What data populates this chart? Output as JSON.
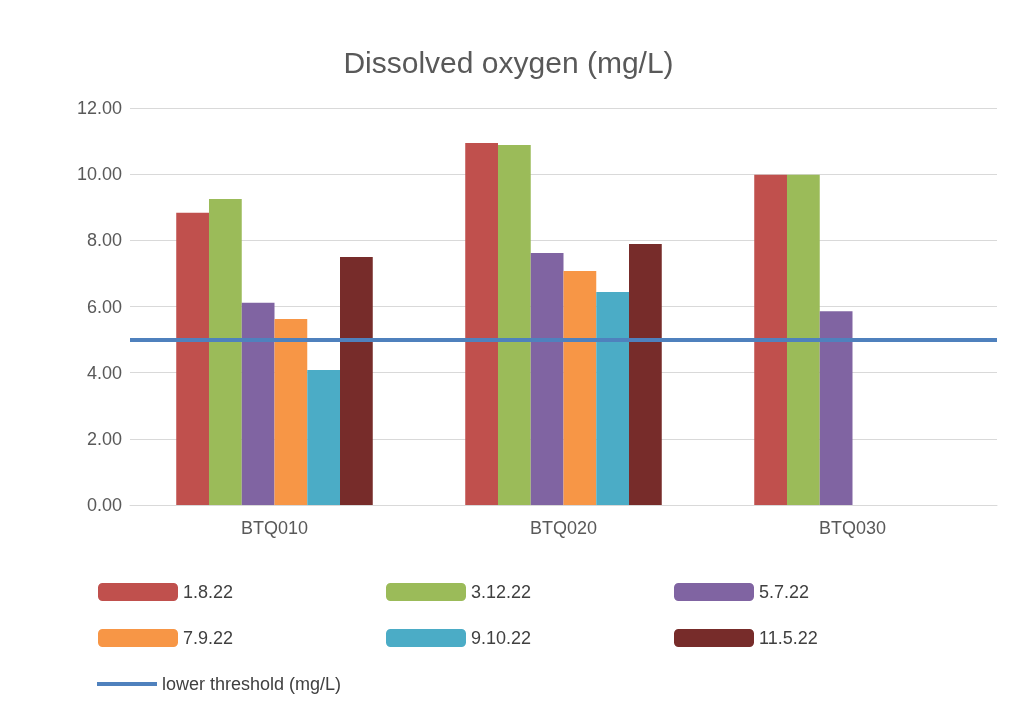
{
  "chart_data": {
    "type": "bar",
    "title": "Dissolved oxygen (mg/L)",
    "categories": [
      "BTQ010",
      "BTQ020",
      "BTQ030"
    ],
    "series": [
      {
        "name": "1.8.22",
        "color": "#c0504d",
        "values": [
          8.83,
          10.94,
          9.98
        ]
      },
      {
        "name": "3.12.22",
        "color": "#9bbb59",
        "values": [
          9.25,
          10.88,
          9.98
        ]
      },
      {
        "name": "5.7.22",
        "color": "#8064a2",
        "values": [
          6.11,
          7.62,
          5.86
        ]
      },
      {
        "name": "7.9.22",
        "color": "#f79646",
        "values": [
          5.62,
          7.07,
          null
        ]
      },
      {
        "name": "9.10.22",
        "color": "#4bacc6",
        "values": [
          4.08,
          6.44,
          null
        ]
      },
      {
        "name": "11.5.22",
        "color": "#772c2a",
        "values": [
          7.5,
          7.89,
          null
        ]
      }
    ],
    "ref_lines": [
      {
        "axis": "y",
        "value": 5,
        "label": "lower threshold (mg/L)",
        "color": "#4f81bd"
      }
    ],
    "ylim": [
      0,
      12
    ],
    "yticks": [
      {
        "value": 0,
        "label": "0.00"
      },
      {
        "value": 2,
        "label": "2.00"
      },
      {
        "value": 4,
        "label": "4.00"
      },
      {
        "value": 6,
        "label": "6.00"
      },
      {
        "value": 8,
        "label": "8.00"
      },
      {
        "value": 10,
        "label": "10.00"
      },
      {
        "value": 12,
        "label": "12.00"
      }
    ],
    "grid": "y",
    "legend": "bottom"
  }
}
